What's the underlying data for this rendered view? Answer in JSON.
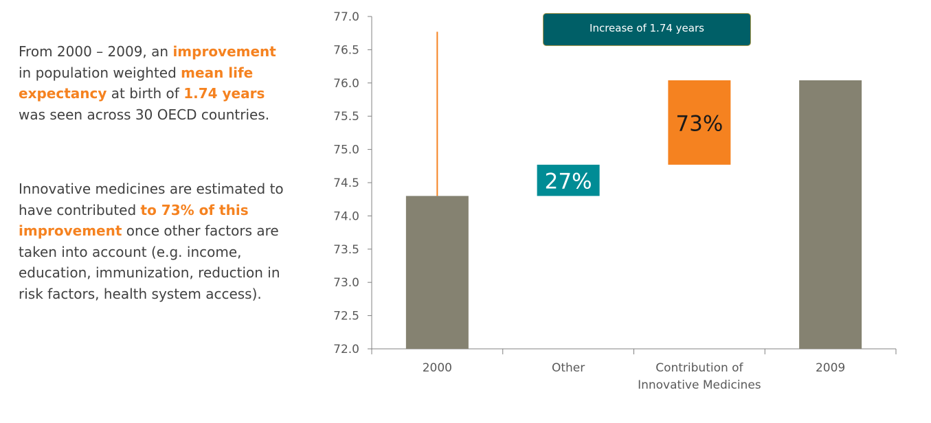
{
  "text_panel": {
    "p1": [
      {
        "t": "From 2000 – 2009, an ",
        "hl": false
      },
      {
        "t": "improvement",
        "hl": true
      },
      {
        "t": " in population weighted ",
        "hl": false
      },
      {
        "t": "mean life expectancy",
        "hl": true
      },
      {
        "t": " at birth of ",
        "hl": false
      },
      {
        "t": "1.74 years",
        "hl": true
      },
      {
        "t": " was seen across 30 OECD countries.",
        "hl": false
      }
    ],
    "p2": [
      {
        "t": "Innovative medicines are estimated to have contributed ",
        "hl": false
      },
      {
        "t": "to 73% of this improvement",
        "hl": true
      },
      {
        "t": " once other factors are taken into account (e.g. income, education, immunization, reduction in risk factors, health system access).",
        "hl": false
      }
    ]
  },
  "callout": {
    "label": "Increase of 1.74 years"
  },
  "colors": {
    "bar_gray": "#858271",
    "other_teal": "#008C95",
    "innovative_orange": "#F58220",
    "callout_fill": "#005F67",
    "callout_border": "#B39B4D",
    "highlight": "#F58220"
  },
  "chart_data": {
    "type": "bar",
    "subtype": "waterfall",
    "categories": [
      "2000",
      "Other",
      "Contribution of Innovative Medicines",
      "2009"
    ],
    "bars": [
      {
        "category": "2000",
        "bottom": 72.0,
        "top": 74.3,
        "kind": "total"
      },
      {
        "category": "Other",
        "bottom": 74.3,
        "top": 74.77,
        "kind": "increment",
        "label": "27%"
      },
      {
        "category": "Contribution of Innovative Medicines",
        "bottom": 74.77,
        "top": 76.04,
        "kind": "increment",
        "label": "73%"
      },
      {
        "category": "2009",
        "bottom": 72.0,
        "top": 76.04,
        "kind": "total"
      }
    ],
    "reference_line": {
      "category": "2000",
      "from": 74.3,
      "to": 76.77
    },
    "ylim": [
      72.0,
      77.0
    ],
    "yticks": [
      "72.0",
      "72.5",
      "73.0",
      "73.5",
      "74.0",
      "74.5",
      "75.0",
      "75.5",
      "76.0",
      "76.5",
      "77.0"
    ],
    "grid": false,
    "legend": "none"
  }
}
